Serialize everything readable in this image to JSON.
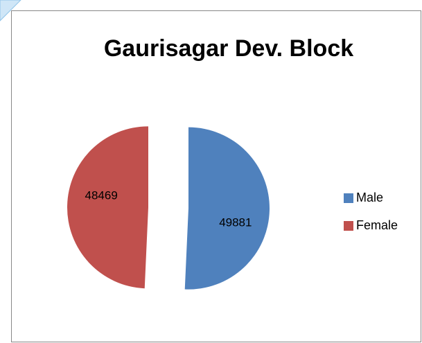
{
  "chart_data": {
    "type": "pie",
    "title": "Gaurisagar Dev. Block",
    "categories": [
      "Male",
      "Female"
    ],
    "values": [
      49881,
      48469
    ],
    "colors": [
      "#4f81bd",
      "#c0504d"
    ],
    "legend": "right"
  }
}
